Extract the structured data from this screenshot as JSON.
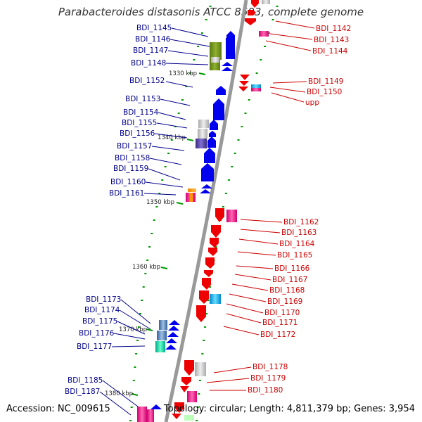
{
  "title": "Parabacteroides distasonis ATCC 8503, complete genome",
  "footer": {
    "accession": "Accession: NC_009615",
    "topology": "Topology: circular; Length: 4,811,379 bp; Genes: 3,954"
  },
  "scale_labels": [
    "1330 kbp",
    "1340 kbp",
    "1350 kbp",
    "1360 kbp",
    "1370 kbp",
    "1380 kbp"
  ],
  "left_genes": [
    "BDI_1145",
    "BDI_1146",
    "BDI_1147",
    "BDI_1148",
    "BDI_1152",
    "BDI_1153",
    "BDI_1154",
    "BDI_1155",
    "BDI_1156",
    "BDI_1157",
    "BDI_1158",
    "BDI_1159",
    "BDI_1160",
    "BDI_1161",
    "BDI_1173",
    "BDI_1174",
    "BDI_1175",
    "BDI_1176",
    "BDI_1177",
    "BDI_1185",
    "BDI_1187"
  ],
  "right_genes": [
    "BDI_1142",
    "BDI_1143",
    "BDI_1144",
    "BDI_1149",
    "BDI_1150",
    "upp",
    "BDI_1162",
    "BDI_1163",
    "BDI_1164",
    "BDI_1165",
    "BDI_1166",
    "BDI_1167",
    "BDI_1168",
    "BDI_1169",
    "BDI_1170",
    "BDI_1171",
    "BDI_1172",
    "BDI_1178",
    "BDI_1179",
    "BDI_1180"
  ],
  "colors": {
    "forward_strand": "#0000ee",
    "reverse_strand": "#ee0000",
    "backbone": "#999999",
    "tick_green": "#009900",
    "left_label": "#00008b",
    "right_label": "#cc0000"
  }
}
